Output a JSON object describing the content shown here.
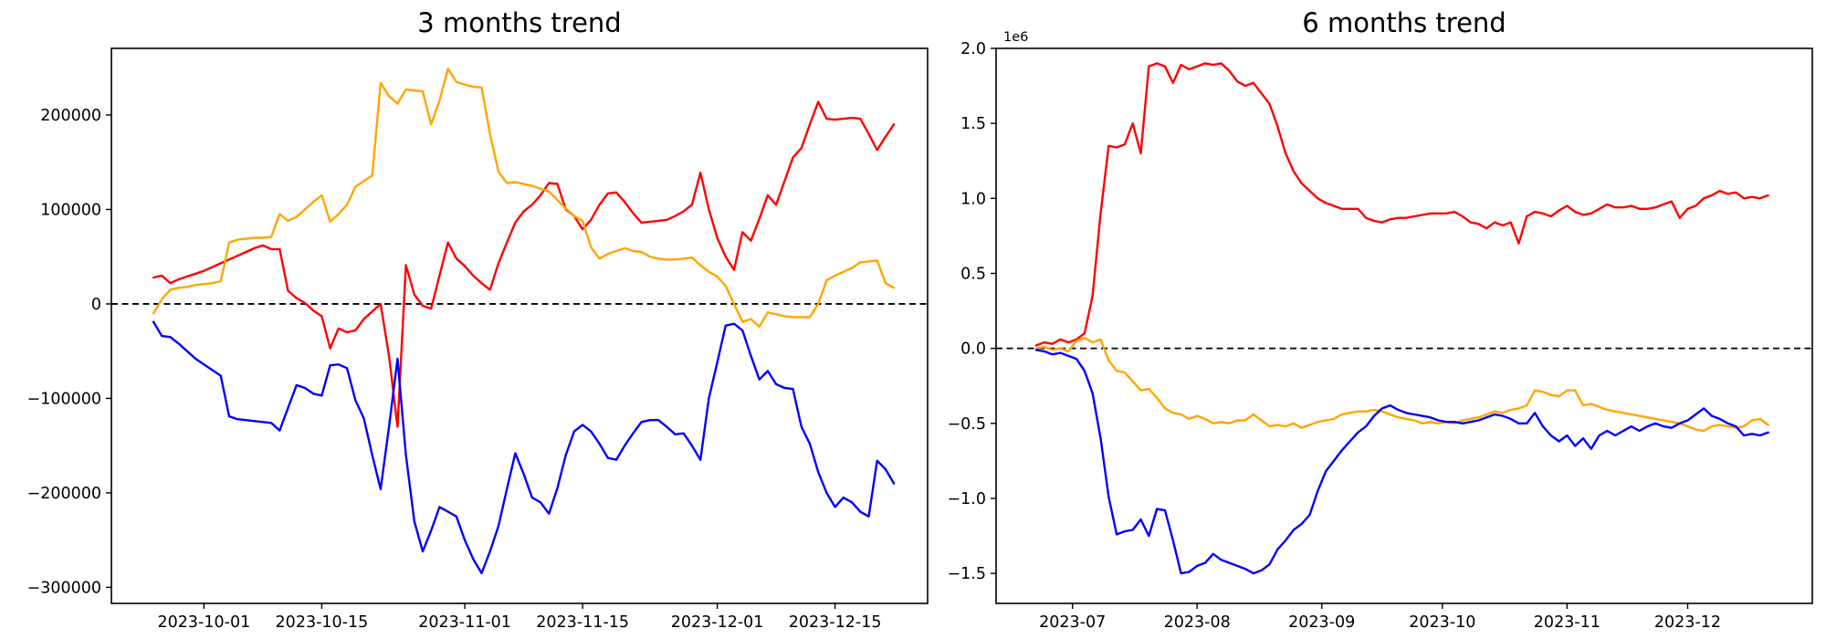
{
  "figure": {
    "background": "#ffffff"
  },
  "chart_data": {
    "three_month": {
      "type": "line",
      "title": "3 months trend",
      "xlabel": "",
      "ylabel": "",
      "grid": false,
      "legend": "none",
      "zero_line_dashed": true,
      "xlim": [
        "2023-09-20",
        "2023-12-26"
      ],
      "ylim": [
        -317000,
        270500
      ],
      "yticks": [
        {
          "value": 200000,
          "label": "200000"
        },
        {
          "value": 100000,
          "label": "100000"
        },
        {
          "value": 0,
          "label": "0"
        },
        {
          "value": -100000,
          "label": "−100000"
        },
        {
          "value": -200000,
          "label": "−200000"
        },
        {
          "value": -300000,
          "label": "−300000"
        }
      ],
      "xticks": [
        {
          "date": "2023-10-01",
          "label": "2023-10-01"
        },
        {
          "date": "2023-10-15",
          "label": "2023-10-15"
        },
        {
          "date": "2023-11-01",
          "label": "2023-11-01"
        },
        {
          "date": "2023-11-15",
          "label": "2023-11-15"
        },
        {
          "date": "2023-12-01",
          "label": "2023-12-01"
        },
        {
          "date": "2023-12-15",
          "label": "2023-12-15"
        }
      ],
      "x_dates": [
        "2023-09-25",
        "2023-09-26",
        "2023-09-27",
        "2023-09-28",
        "2023-09-29",
        "2023-09-30",
        "2023-10-01",
        "2023-10-02",
        "2023-10-03",
        "2023-10-04",
        "2023-10-05",
        "2023-10-06",
        "2023-10-07",
        "2023-10-08",
        "2023-10-09",
        "2023-10-10",
        "2023-10-11",
        "2023-10-12",
        "2023-10-13",
        "2023-10-14",
        "2023-10-15",
        "2023-10-16",
        "2023-10-17",
        "2023-10-18",
        "2023-10-19",
        "2023-10-20",
        "2023-10-21",
        "2023-10-22",
        "2023-10-23",
        "2023-10-24",
        "2023-10-25",
        "2023-10-26",
        "2023-10-27",
        "2023-10-28",
        "2023-10-29",
        "2023-10-30",
        "2023-10-31",
        "2023-11-01",
        "2023-11-02",
        "2023-11-03",
        "2023-11-04",
        "2023-11-05",
        "2023-11-06",
        "2023-11-07",
        "2023-11-08",
        "2023-11-09",
        "2023-11-10",
        "2023-11-11",
        "2023-11-12",
        "2023-11-13",
        "2023-11-14",
        "2023-11-15",
        "2023-11-16",
        "2023-11-17",
        "2023-11-18",
        "2023-11-19",
        "2023-11-20",
        "2023-11-21",
        "2023-11-22",
        "2023-11-23",
        "2023-11-24",
        "2023-11-25",
        "2023-11-26",
        "2023-11-27",
        "2023-11-28",
        "2023-11-29",
        "2023-11-30",
        "2023-12-01",
        "2023-12-02",
        "2023-12-03",
        "2023-12-04",
        "2023-12-05",
        "2023-12-06",
        "2023-12-07",
        "2023-12-08",
        "2023-12-09",
        "2023-12-10",
        "2023-12-11",
        "2023-12-12",
        "2023-12-13",
        "2023-12-14",
        "2023-12-15",
        "2023-12-16",
        "2023-12-17",
        "2023-12-18",
        "2023-12-19",
        "2023-12-20",
        "2023-12-21",
        "2023-12-22"
      ],
      "series": [
        {
          "name": "red",
          "color": "#ff0000",
          "values": [
            28000,
            30000,
            22000,
            26000,
            29000,
            32000,
            35000,
            39000,
            43000,
            47000,
            51000,
            55000,
            59000,
            62000,
            58000,
            58000,
            14000,
            6000,
            1000,
            -7000,
            -13000,
            -47000,
            -26000,
            -30000,
            -28000,
            -16000,
            -8000,
            0,
            -55000,
            -130000,
            41000,
            10000,
            -2000,
            -5000,
            30000,
            65000,
            48000,
            40000,
            30000,
            22000,
            15000,
            43000,
            65000,
            86000,
            98000,
            105000,
            115000,
            128000,
            127000,
            100000,
            93000,
            79000,
            89000,
            105000,
            117000,
            118000,
            108000,
            96000,
            86000,
            87000,
            88000,
            89000,
            93000,
            98000,
            105000,
            139000,
            100000,
            70000,
            50000,
            36000,
            76000,
            67000,
            90000,
            115000,
            105000,
            130000,
            155000,
            165000,
            190000,
            214000,
            196000,
            195000,
            196000,
            197000,
            196000,
            180000,
            163000,
            177000,
            190000
          ]
        },
        {
          "name": "orange",
          "color": "#ffa500",
          "values": [
            -10000,
            5000,
            15000,
            17000,
            18000,
            20000,
            21000,
            22000,
            24000,
            65000,
            68000,
            69000,
            70000,
            70000,
            71000,
            95000,
            88000,
            92000,
            100000,
            108000,
            115000,
            87000,
            95000,
            105000,
            124000,
            130000,
            136000,
            234000,
            220000,
            212000,
            227000,
            226000,
            225000,
            190000,
            215000,
            249000,
            235000,
            232000,
            230000,
            229000,
            180000,
            140000,
            128000,
            129000,
            127000,
            125000,
            122000,
            119000,
            110000,
            101000,
            93000,
            88000,
            60000,
            48000,
            53000,
            56000,
            59000,
            56000,
            55000,
            50000,
            48000,
            47000,
            47000,
            48000,
            49000,
            41000,
            34000,
            29000,
            19000,
            0,
            -19000,
            -16000,
            -24000,
            -9000,
            -11000,
            -13000,
            -14000,
            -14000,
            -14000,
            0,
            25000,
            30000,
            34000,
            38000,
            44000,
            45000,
            46000,
            22000,
            17000
          ]
        },
        {
          "name": "blue",
          "color": "#0000ff",
          "values": [
            -19000,
            -34000,
            -35000,
            -42000,
            -50000,
            -58000,
            -64000,
            -70000,
            -76000,
            -119000,
            -122000,
            -123000,
            -124000,
            -125000,
            -126000,
            -134000,
            -110000,
            -86000,
            -89000,
            -95000,
            -97000,
            -65000,
            -64000,
            -68000,
            -102000,
            -121000,
            -160000,
            -196000,
            -130000,
            -58000,
            -160000,
            -230000,
            -262000,
            -240000,
            -215000,
            -220000,
            -225000,
            -250000,
            -270000,
            -285000,
            -262000,
            -235000,
            -196000,
            -158000,
            -180000,
            -205000,
            -210000,
            -222000,
            -195000,
            -160000,
            -135000,
            -128000,
            -135000,
            -148000,
            -163000,
            -165000,
            -150000,
            -137000,
            -125000,
            -123000,
            -123000,
            -130000,
            -138000,
            -137000,
            -150000,
            -165000,
            -100000,
            -62000,
            -23000,
            -21000,
            -28000,
            -55000,
            -80000,
            -71000,
            -85000,
            -89000,
            -90000,
            -130000,
            -148000,
            -178000,
            -200000,
            -215000,
            -205000,
            -210000,
            -220000,
            -225000,
            -166000,
            -175000,
            -190000
          ]
        }
      ]
    },
    "six_month": {
      "type": "line",
      "title": "6 months trend",
      "xlabel": "",
      "ylabel": "",
      "grid": false,
      "legend": "none",
      "zero_line_dashed": true,
      "y_unit_label": "1e6",
      "xlim": [
        "2023-06-12",
        "2024-01-01"
      ],
      "ylim": [
        -1.7,
        2.0
      ],
      "yticks": [
        {
          "value": 2.0,
          "label": "2.0"
        },
        {
          "value": 1.5,
          "label": "1.5"
        },
        {
          "value": 1.0,
          "label": "1.0"
        },
        {
          "value": 0.5,
          "label": "0.5"
        },
        {
          "value": 0.0,
          "label": "0.0"
        },
        {
          "value": -0.5,
          "label": "−0.5"
        },
        {
          "value": -1.0,
          "label": "−1.0"
        },
        {
          "value": -1.5,
          "label": "−1.5"
        }
      ],
      "xticks": [
        {
          "date": "2023-07-01",
          "label": "2023-07"
        },
        {
          "date": "2023-08-01",
          "label": "2023-08"
        },
        {
          "date": "2023-09-01",
          "label": "2023-09"
        },
        {
          "date": "2023-10-01",
          "label": "2023-10"
        },
        {
          "date": "2023-11-01",
          "label": "2023-11"
        },
        {
          "date": "2023-12-01",
          "label": "2023-12"
        }
      ],
      "x_dates": [
        "2023-06-22",
        "2023-06-24",
        "2023-06-26",
        "2023-06-28",
        "2023-06-30",
        "2023-07-02",
        "2023-07-04",
        "2023-07-06",
        "2023-07-08",
        "2023-07-10",
        "2023-07-12",
        "2023-07-14",
        "2023-07-16",
        "2023-07-18",
        "2023-07-20",
        "2023-07-22",
        "2023-07-24",
        "2023-07-26",
        "2023-07-28",
        "2023-07-30",
        "2023-08-01",
        "2023-08-03",
        "2023-08-05",
        "2023-08-07",
        "2023-08-09",
        "2023-08-11",
        "2023-08-13",
        "2023-08-15",
        "2023-08-17",
        "2023-08-19",
        "2023-08-21",
        "2023-08-23",
        "2023-08-25",
        "2023-08-27",
        "2023-08-29",
        "2023-08-31",
        "2023-09-02",
        "2023-09-04",
        "2023-09-06",
        "2023-09-08",
        "2023-09-10",
        "2023-09-12",
        "2023-09-14",
        "2023-09-16",
        "2023-09-18",
        "2023-09-20",
        "2023-09-22",
        "2023-09-24",
        "2023-09-26",
        "2023-09-28",
        "2023-09-30",
        "2023-10-02",
        "2023-10-04",
        "2023-10-06",
        "2023-10-08",
        "2023-10-10",
        "2023-10-12",
        "2023-10-14",
        "2023-10-16",
        "2023-10-18",
        "2023-10-20",
        "2023-10-22",
        "2023-10-24",
        "2023-10-26",
        "2023-10-28",
        "2023-10-30",
        "2023-11-01",
        "2023-11-03",
        "2023-11-05",
        "2023-11-07",
        "2023-11-09",
        "2023-11-11",
        "2023-11-13",
        "2023-11-15",
        "2023-11-17",
        "2023-11-19",
        "2023-11-21",
        "2023-11-23",
        "2023-11-25",
        "2023-11-27",
        "2023-11-29",
        "2023-12-01",
        "2023-12-03",
        "2023-12-05",
        "2023-12-07",
        "2023-12-09",
        "2023-12-11",
        "2023-12-13",
        "2023-12-15",
        "2023-12-17",
        "2023-12-19",
        "2023-12-21"
      ],
      "series": [
        {
          "name": "red",
          "color": "#ff0000",
          "values": [
            0.02,
            0.04,
            0.03,
            0.06,
            0.04,
            0.06,
            0.1,
            0.35,
            0.9,
            1.35,
            1.34,
            1.36,
            1.5,
            1.3,
            1.88,
            1.9,
            1.88,
            1.77,
            1.89,
            1.86,
            1.88,
            1.9,
            1.89,
            1.9,
            1.85,
            1.78,
            1.75,
            1.77,
            1.7,
            1.63,
            1.48,
            1.3,
            1.18,
            1.1,
            1.05,
            1.0,
            0.97,
            0.95,
            0.93,
            0.93,
            0.93,
            0.87,
            0.85,
            0.84,
            0.86,
            0.87,
            0.87,
            0.88,
            0.89,
            0.9,
            0.9,
            0.9,
            0.91,
            0.88,
            0.84,
            0.83,
            0.8,
            0.84,
            0.82,
            0.84,
            0.7,
            0.88,
            0.91,
            0.9,
            0.88,
            0.92,
            0.95,
            0.91,
            0.89,
            0.9,
            0.93,
            0.96,
            0.94,
            0.94,
            0.95,
            0.93,
            0.93,
            0.94,
            0.96,
            0.98,
            0.87,
            0.93,
            0.95,
            1.0,
            1.02,
            1.05,
            1.03,
            1.04,
            1.0,
            1.01,
            1.0,
            1.02
          ]
        },
        {
          "name": "orange",
          "color": "#ffa500",
          "values": [
            0,
            0.01,
            -0.01,
            0,
            -0.02,
            0.05,
            0.07,
            0.04,
            0.06,
            -0.08,
            -0.15,
            -0.16,
            -0.22,
            -0.28,
            -0.27,
            -0.33,
            -0.4,
            -0.43,
            -0.44,
            -0.47,
            -0.45,
            -0.47,
            -0.5,
            -0.49,
            -0.5,
            -0.48,
            -0.48,
            -0.44,
            -0.48,
            -0.52,
            -0.51,
            -0.52,
            -0.5,
            -0.53,
            -0.51,
            -0.49,
            -0.48,
            -0.47,
            -0.44,
            -0.43,
            -0.42,
            -0.42,
            -0.41,
            -0.42,
            -0.44,
            -0.46,
            -0.47,
            -0.48,
            -0.5,
            -0.49,
            -0.5,
            -0.49,
            -0.5,
            -0.48,
            -0.47,
            -0.46,
            -0.44,
            -0.42,
            -0.43,
            -0.41,
            -0.4,
            -0.38,
            -0.28,
            -0.29,
            -0.31,
            -0.32,
            -0.28,
            -0.28,
            -0.38,
            -0.37,
            -0.39,
            -0.41,
            -0.42,
            -0.43,
            -0.44,
            -0.45,
            -0.46,
            -0.47,
            -0.48,
            -0.49,
            -0.5,
            -0.52,
            -0.54,
            -0.55,
            -0.52,
            -0.51,
            -0.52,
            -0.53,
            -0.52,
            -0.48,
            -0.47,
            -0.51
          ]
        },
        {
          "name": "blue",
          "color": "#0000ff",
          "values": [
            -0.01,
            -0.02,
            -0.04,
            -0.03,
            -0.05,
            -0.07,
            -0.15,
            -0.3,
            -0.6,
            -0.99,
            -1.24,
            -1.22,
            -1.21,
            -1.14,
            -1.25,
            -1.07,
            -1.08,
            -1.28,
            -1.5,
            -1.49,
            -1.45,
            -1.43,
            -1.37,
            -1.41,
            -1.43,
            -1.45,
            -1.47,
            -1.5,
            -1.48,
            -1.44,
            -1.34,
            -1.28,
            -1.21,
            -1.17,
            -1.11,
            -0.95,
            -0.82,
            -0.75,
            -0.68,
            -0.62,
            -0.56,
            -0.52,
            -0.45,
            -0.4,
            -0.38,
            -0.41,
            -0.43,
            -0.44,
            -0.45,
            -0.46,
            -0.48,
            -0.49,
            -0.49,
            -0.5,
            -0.49,
            -0.48,
            -0.46,
            -0.44,
            -0.45,
            -0.47,
            -0.5,
            -0.5,
            -0.43,
            -0.52,
            -0.58,
            -0.62,
            -0.58,
            -0.65,
            -0.6,
            -0.67,
            -0.58,
            -0.55,
            -0.58,
            -0.55,
            -0.52,
            -0.55,
            -0.52,
            -0.5,
            -0.52,
            -0.53,
            -0.5,
            -0.48,
            -0.44,
            -0.4,
            -0.45,
            -0.47,
            -0.5,
            -0.52,
            -0.58,
            -0.57,
            -0.58,
            -0.56
          ]
        }
      ]
    }
  }
}
